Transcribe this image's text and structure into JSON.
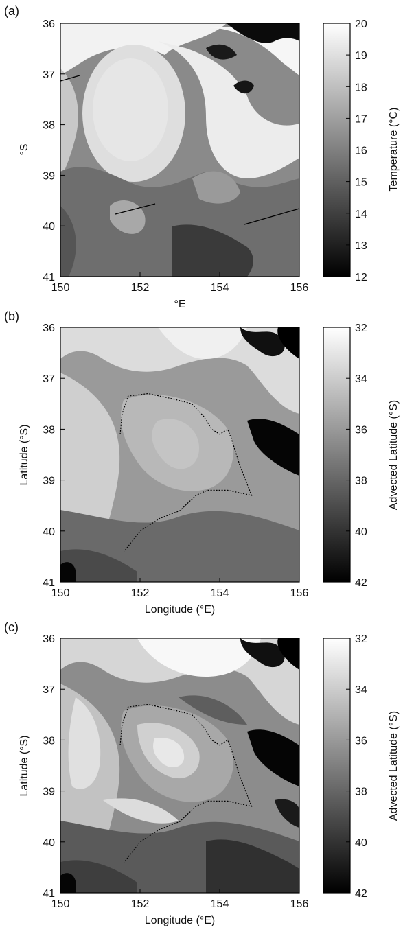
{
  "panels": [
    {
      "id": "a",
      "label": "(a)",
      "xlabel": "°E",
      "ylabel": "°S",
      "colorbar_label": "Temperature (°C)",
      "x_ticks": [
        "150",
        "152",
        "154",
        "156"
      ],
      "y_ticks": [
        "36",
        "37",
        "38",
        "39",
        "40",
        "41"
      ],
      "colorbar_ticks": [
        "20",
        "19",
        "18",
        "17",
        "16",
        "15",
        "14",
        "13",
        "12"
      ]
    },
    {
      "id": "b",
      "label": "(b)",
      "xlabel": "Longitude (°E)",
      "ylabel": "Latitude (°S)",
      "colorbar_label": "Advected Latitude (°S)",
      "x_ticks": [
        "150",
        "152",
        "154",
        "156"
      ],
      "y_ticks": [
        "36",
        "37",
        "38",
        "39",
        "40",
        "41"
      ],
      "colorbar_ticks": [
        "32",
        "34",
        "36",
        "38",
        "40",
        "42"
      ]
    },
    {
      "id": "c",
      "label": "(c)",
      "xlabel": "Longitude (°E)",
      "ylabel": "Latitude (°S)",
      "colorbar_label": "Advected Latitude (°S)",
      "x_ticks": [
        "150",
        "152",
        "154",
        "156"
      ],
      "y_ticks": [
        "36",
        "37",
        "38",
        "39",
        "40",
        "41"
      ],
      "colorbar_ticks": [
        "32",
        "34",
        "36",
        "38",
        "40",
        "42"
      ]
    }
  ],
  "chart_data": [
    {
      "type": "heatmap",
      "xlabel": "°E",
      "ylabel": "°S",
      "colorbar_label": "Temperature (°C)",
      "xlim": [
        150,
        156
      ],
      "ylim": [
        36,
        41
      ],
      "colorbar_range": [
        12,
        20
      ],
      "colormap": "gray",
      "transects": [
        {
          "x": [
            150.0,
            150.6
          ],
          "y": [
            37.2,
            37.05
          ]
        },
        {
          "x": [
            151.4,
            152.4
          ],
          "y": [
            39.75,
            39.55
          ]
        },
        {
          "x": [
            154.6,
            156.0
          ],
          "y": [
            40.3,
            39.85
          ]
        }
      ]
    },
    {
      "type": "heatmap",
      "xlabel": "Longitude (°E)",
      "ylabel": "Latitude (°S)",
      "colorbar_label": "Advected Latitude (°S)",
      "xlim": [
        150,
        156
      ],
      "ylim": [
        36,
        41
      ],
      "colorbar_range": [
        32,
        42
      ],
      "colormap": "gray",
      "boundary": {
        "x": [
          151.5,
          151.55,
          151.7,
          152.2,
          152.8,
          153.3,
          153.6,
          153.8,
          154.0,
          154.2,
          154.3,
          154.5,
          154.8,
          154.2,
          153.7,
          153.4,
          153.0,
          152.5,
          152.0,
          151.7,
          151.6
        ],
        "y": [
          38.1,
          37.7,
          37.35,
          37.3,
          37.4,
          37.5,
          37.75,
          38.0,
          38.1,
          38.0,
          38.2,
          38.7,
          39.3,
          39.2,
          39.2,
          39.3,
          39.6,
          39.75,
          40.0,
          40.3,
          40.4
        ]
      }
    },
    {
      "type": "heatmap",
      "xlabel": "Longitude (°E)",
      "ylabel": "Latitude (°S)",
      "colorbar_label": "Advected Latitude (°S)",
      "xlim": [
        150,
        156
      ],
      "ylim": [
        36,
        41
      ],
      "colorbar_range": [
        32,
        42
      ],
      "colormap": "gray",
      "boundary": {
        "x": [
          151.5,
          151.55,
          151.7,
          152.2,
          152.8,
          153.3,
          153.6,
          153.8,
          154.0,
          154.2,
          154.3,
          154.5,
          154.8,
          154.2,
          153.7,
          153.4,
          153.0,
          152.5,
          152.0,
          151.7,
          151.6
        ],
        "y": [
          38.1,
          37.7,
          37.35,
          37.3,
          37.4,
          37.5,
          37.75,
          38.0,
          38.1,
          38.0,
          38.2,
          38.7,
          39.3,
          39.2,
          39.2,
          39.3,
          39.6,
          39.75,
          40.0,
          40.3,
          40.4
        ]
      }
    }
  ]
}
